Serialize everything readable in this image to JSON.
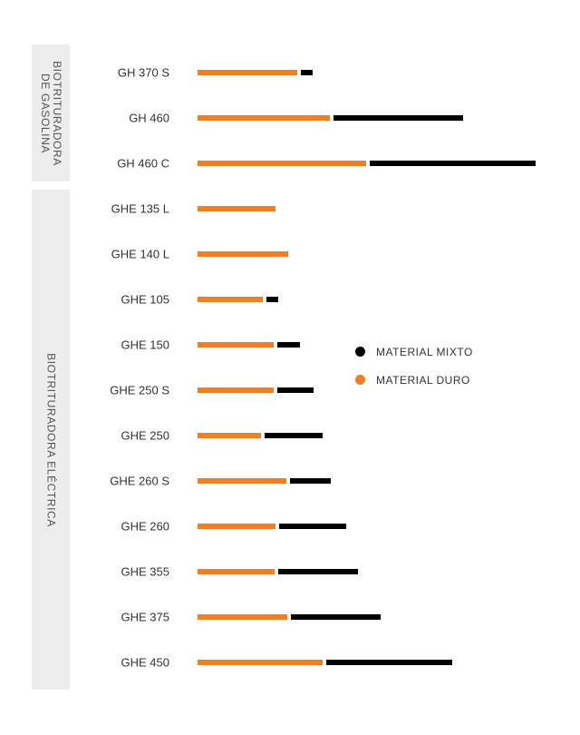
{
  "groups": {
    "gasolina": {
      "label": "BIOTRITURADORA\nDE GASOLINA"
    },
    "electrica": {
      "label": "BIOTRITURADORA ELÉCTRICA"
    }
  },
  "legend": {
    "items": [
      {
        "label": "MATERIAL MIXTO",
        "color": "#000000"
      },
      {
        "label": "MATERIAL DURO",
        "color": "#f07f23"
      }
    ]
  },
  "colors": {
    "duro": "#f07f23",
    "mixto": "#000000"
  },
  "chart_data": {
    "type": "bar",
    "orientation": "horizontal",
    "stacked": true,
    "title": "",
    "xlabel": "",
    "ylabel": "",
    "categories": [
      "GH 370 S",
      "GH 460",
      "GH 460 C",
      "GHE 135 L",
      "GHE 140 L",
      "GHE 105",
      "GHE 150",
      "GHE 250 S",
      "GHE 250",
      "GHE 260 S",
      "GHE 260",
      "GHE 355",
      "GHE 375",
      "GHE 450"
    ],
    "series": [
      {
        "name": "MATERIAL DURO",
        "values": [
          110,
          146,
          186,
          86,
          100,
          72,
          84,
          84,
          70,
          98,
          86,
          85,
          99,
          138
        ]
      },
      {
        "name": "MATERIAL MIXTO",
        "values": [
          13,
          143,
          183,
          0,
          0,
          13,
          25,
          40,
          64,
          45,
          74,
          88,
          99,
          139
        ]
      }
    ],
    "xlim": [
      0,
      380
    ],
    "grid": false,
    "legend_position": "right"
  }
}
